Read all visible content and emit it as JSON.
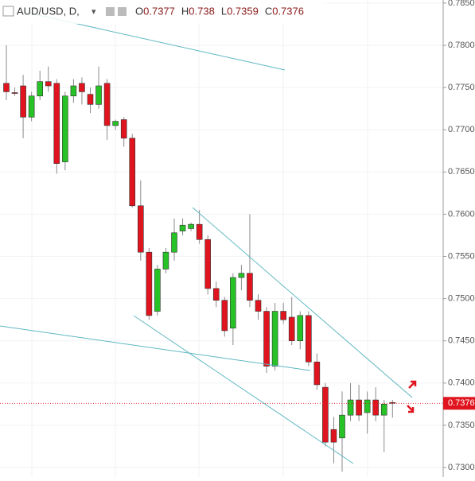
{
  "chart_data": {
    "type": "candlestick",
    "symbol": "AUD/USD, D,",
    "ohlc_header": [
      {
        "label": "O",
        "value": 0.7377
      },
      {
        "label": "H",
        "value": 0.738
      },
      {
        "label": "L",
        "value": 0.7359
      },
      {
        "label": "C",
        "value": 0.7376
      }
    ],
    "open": [
      0.7755,
      0.7744,
      0.7752,
      0.7715,
      0.774,
      0.7757,
      0.7755,
      0.7662,
      0.774,
      0.7755,
      0.7742,
      0.773,
      0.7755,
      0.7705,
      0.7712,
      0.769,
      0.761,
      0.7555,
      0.7485,
      0.7535,
      0.7555,
      0.758,
      0.7583,
      0.7588,
      0.757,
      0.7512,
      0.7498,
      0.7465,
      0.7525,
      0.753,
      0.7498,
      0.7485,
      0.742,
      0.7485,
      0.7478,
      0.745,
      0.748,
      0.7425,
      0.7395,
      0.7345,
      0.7335,
      0.7362,
      0.738,
      0.7365,
      0.738,
      0.7362,
      0.7377
    ],
    "high": [
      0.78,
      0.775,
      0.7765,
      0.7745,
      0.777,
      0.7775,
      0.776,
      0.7745,
      0.776,
      0.7762,
      0.775,
      0.7775,
      0.776,
      0.7712,
      0.7715,
      0.7695,
      0.764,
      0.756,
      0.754,
      0.756,
      0.7595,
      0.7595,
      0.759,
      0.7605,
      0.7575,
      0.752,
      0.7502,
      0.753,
      0.754,
      0.76,
      0.7505,
      0.749,
      0.7495,
      0.7495,
      0.7502,
      0.7485,
      0.7485,
      0.7435,
      0.74,
      0.736,
      0.739,
      0.74,
      0.7398,
      0.739,
      0.7395,
      0.738,
      0.738
    ],
    "low": [
      0.7735,
      0.774,
      0.769,
      0.771,
      0.7735,
      0.7745,
      0.7648,
      0.7652,
      0.7732,
      0.773,
      0.772,
      0.7725,
      0.7688,
      0.77,
      0.768,
      0.7608,
      0.7545,
      0.7475,
      0.748,
      0.753,
      0.7545,
      0.7575,
      0.758,
      0.7565,
      0.7505,
      0.749,
      0.7455,
      0.7445,
      0.751,
      0.749,
      0.7475,
      0.7412,
      0.7415,
      0.747,
      0.7445,
      0.744,
      0.742,
      0.7392,
      0.7325,
      0.7305,
      0.7295,
      0.7355,
      0.7355,
      0.734,
      0.7355,
      0.7318,
      0.7359
    ],
    "close": [
      0.7745,
      0.7743,
      0.7715,
      0.774,
      0.7757,
      0.7752,
      0.766,
      0.774,
      0.7752,
      0.7745,
      0.773,
      0.7752,
      0.7705,
      0.771,
      0.769,
      0.761,
      0.7555,
      0.748,
      0.7535,
      0.7555,
      0.7578,
      0.7587,
      0.7588,
      0.757,
      0.7512,
      0.7498,
      0.7462,
      0.7525,
      0.753,
      0.7498,
      0.7485,
      0.742,
      0.7485,
      0.7475,
      0.745,
      0.748,
      0.7425,
      0.7398,
      0.733,
      0.733,
      0.7362,
      0.738,
      0.7362,
      0.738,
      0.7362,
      0.7375,
      0.7376
    ],
    "up_color": "#26c226",
    "down_color": "#e0141e",
    "current_price": 0.7376,
    "current_price_color": "#e0141e",
    "ylim": [
      0.72887,
      0.78537
    ],
    "yticks": [
      {
        "value": 0.73,
        "label": "0.7300"
      },
      {
        "value": 0.735,
        "label": "0.7350"
      },
      {
        "value": 0.74,
        "label": "0.7400"
      },
      {
        "value": 0.745,
        "label": "0.7450"
      },
      {
        "value": 0.75,
        "label": "0.7500"
      },
      {
        "value": 0.755,
        "label": "0.7550"
      },
      {
        "value": 0.76,
        "label": "0.7600"
      },
      {
        "value": 0.765,
        "label": "0.7650"
      },
      {
        "value": 0.77,
        "label": "0.7700"
      },
      {
        "value": 0.775,
        "label": "0.7750"
      },
      {
        "value": 0.78,
        "label": "0.7800"
      },
      {
        "value": 0.785,
        "label": "0.7850"
      }
    ],
    "grid": true
  }
}
